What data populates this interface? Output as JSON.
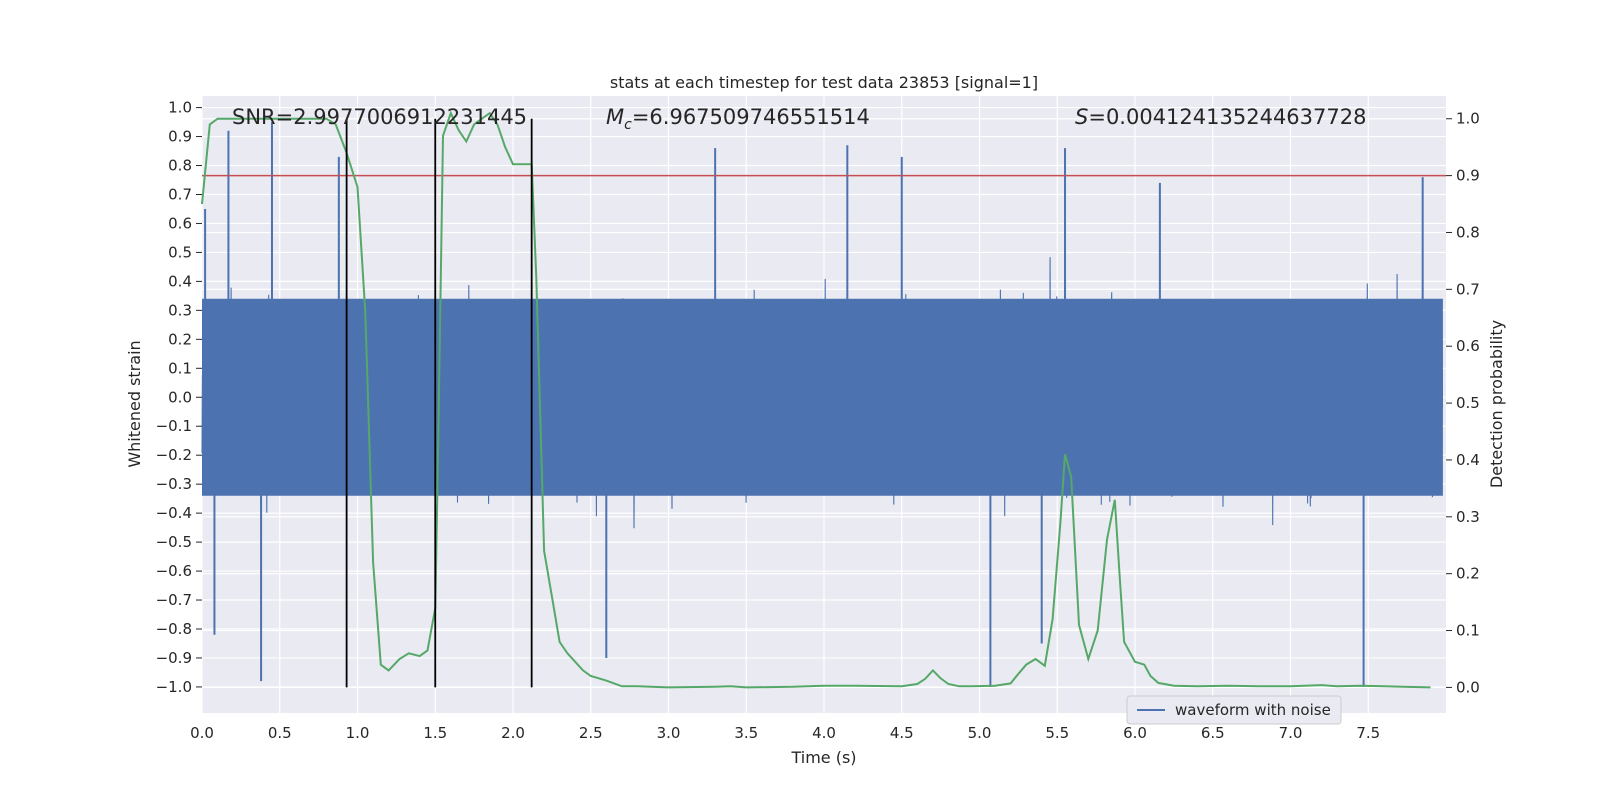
{
  "chart_data": {
    "type": "line",
    "title": "stats at each timestep for test data 23853 [signal=1]",
    "xlabel": "Time (s)",
    "ylabel_left": "Whitened strain",
    "ylabel_right": "Detection probability",
    "xlim": [
      0.0,
      8.0
    ],
    "ylim_left": [
      -1.09,
      1.04
    ],
    "ylim_right": [
      -0.045,
      1.04
    ],
    "x_ticks": [
      0.0,
      0.5,
      1.0,
      1.5,
      2.0,
      2.5,
      3.0,
      3.5,
      4.0,
      4.5,
      5.0,
      5.5,
      6.0,
      6.5,
      7.0,
      7.5
    ],
    "x_tick_labels": [
      "0.0",
      "0.5",
      "1.0",
      "1.5",
      "2.0",
      "2.5",
      "3.0",
      "3.5",
      "4.0",
      "4.5",
      "5.0",
      "5.5",
      "6.0",
      "6.5",
      "7.0",
      "7.5"
    ],
    "y_left_ticks": [
      1.0,
      0.9,
      0.8,
      0.7,
      0.6,
      0.5,
      0.4,
      0.3,
      0.2,
      0.1,
      0.0,
      -0.1,
      -0.2,
      -0.3,
      -0.4,
      -0.5,
      -0.6,
      -0.7,
      -0.8,
      -0.9,
      -1.0
    ],
    "y_left_tick_labels": [
      "1.0",
      "0.9",
      "0.8",
      "0.7",
      "0.6",
      "0.5",
      "0.4",
      "0.3",
      "0.2",
      "0.1",
      "0.0",
      "−0.1",
      "−0.2",
      "−0.3",
      "−0.4",
      "−0.5",
      "−0.6",
      "−0.7",
      "−0.8",
      "−0.9",
      "−1.0"
    ],
    "y_right_ticks": [
      1.0,
      0.9,
      0.8,
      0.7,
      0.6,
      0.5,
      0.4,
      0.3,
      0.2,
      0.1,
      0.0
    ],
    "y_right_tick_labels": [
      "1.0",
      "0.9",
      "0.8",
      "0.7",
      "0.6",
      "0.5",
      "0.4",
      "0.3",
      "0.2",
      "0.1",
      "0.0"
    ],
    "grid": true,
    "legend_position": "bottom-right",
    "annotations": {
      "snr_label": "SNR=2.9977006912231445",
      "mc_label_value": "=6.967509746551514",
      "s_label_value": "=0.004124135244637728"
    },
    "threshold": {
      "value": 0.9,
      "axis": "right",
      "color": "#c44e52"
    },
    "vertical_markers": [
      0.93,
      1.5,
      2.12
    ],
    "series": [
      {
        "name": "waveform with noise",
        "axis": "left",
        "color": "#4c72b0",
        "style": "dense noise waveform, mostly within ±0.45 with spikes up to about ±1.0",
        "spikes": [
          [
            0.02,
            0.65
          ],
          [
            0.08,
            -0.82
          ],
          [
            0.17,
            0.92
          ],
          [
            0.38,
            -0.98
          ],
          [
            0.45,
            0.95
          ],
          [
            0.88,
            0.83
          ],
          [
            2.6,
            -0.9
          ],
          [
            3.3,
            0.86
          ],
          [
            4.15,
            0.87
          ],
          [
            4.5,
            0.83
          ],
          [
            5.07,
            -1.0
          ],
          [
            5.4,
            -0.85
          ],
          [
            5.55,
            0.86
          ],
          [
            6.16,
            0.74
          ],
          [
            7.47,
            -1.0
          ],
          [
            7.85,
            0.76
          ]
        ]
      },
      {
        "name": "",
        "axis": "right",
        "color": "#55a868",
        "x": [
          0.0,
          0.05,
          0.1,
          0.2,
          0.3,
          0.4,
          0.5,
          0.6,
          0.7,
          0.8,
          0.86,
          0.93,
          1.0,
          1.05,
          1.1,
          1.15,
          1.2,
          1.27,
          1.33,
          1.4,
          1.45,
          1.5,
          1.52,
          1.55,
          1.6,
          1.65,
          1.7,
          1.75,
          1.8,
          1.85,
          1.9,
          1.95,
          2.0,
          2.05,
          2.12,
          2.15,
          2.2,
          2.25,
          2.3,
          2.35,
          2.4,
          2.45,
          2.5,
          2.6,
          2.7,
          2.8,
          3.0,
          3.3,
          3.4,
          3.5,
          3.8,
          4.0,
          4.2,
          4.5,
          4.6,
          4.65,
          4.7,
          4.75,
          4.8,
          4.87,
          4.95,
          5.1,
          5.2,
          5.25,
          5.3,
          5.36,
          5.42,
          5.47,
          5.52,
          5.55,
          5.59,
          5.64,
          5.7,
          5.76,
          5.82,
          5.87,
          5.9,
          5.93,
          6.0,
          6.06,
          6.1,
          6.15,
          6.25,
          6.4,
          6.6,
          6.8,
          7.0,
          7.2,
          7.3,
          7.45,
          7.6,
          7.9
        ],
        "values": [
          0.85,
          0.99,
          1.0,
          1.0,
          1.0,
          1.0,
          1.0,
          1.0,
          1.0,
          1.0,
          0.99,
          0.94,
          0.88,
          0.66,
          0.22,
          0.04,
          0.03,
          0.05,
          0.06,
          0.055,
          0.065,
          0.14,
          0.45,
          0.97,
          1.01,
          0.98,
          0.96,
          0.99,
          1.0,
          1.01,
          0.99,
          0.95,
          0.92,
          0.92,
          0.92,
          0.72,
          0.24,
          0.16,
          0.08,
          0.06,
          0.045,
          0.03,
          0.02,
          0.012,
          0.002,
          0.002,
          0.0,
          0.001,
          0.002,
          0.0,
          0.001,
          0.003,
          0.003,
          0.002,
          0.006,
          0.015,
          0.03,
          0.016,
          0.006,
          0.002,
          0.002,
          0.003,
          0.007,
          0.024,
          0.04,
          0.05,
          0.038,
          0.12,
          0.29,
          0.41,
          0.37,
          0.11,
          0.05,
          0.1,
          0.26,
          0.33,
          0.2,
          0.08,
          0.045,
          0.04,
          0.02,
          0.008,
          0.003,
          0.002,
          0.003,
          0.002,
          0.002,
          0.004,
          0.002,
          0.003,
          0.002,
          0.0
        ]
      }
    ]
  },
  "legend": {
    "label": "waveform with noise"
  },
  "colors": {
    "background": "#eaeaf2",
    "grid": "#ffffff",
    "waveform": "#4c72b0",
    "probability": "#55a868",
    "threshold": "#c44e52",
    "markers": "#000000"
  }
}
